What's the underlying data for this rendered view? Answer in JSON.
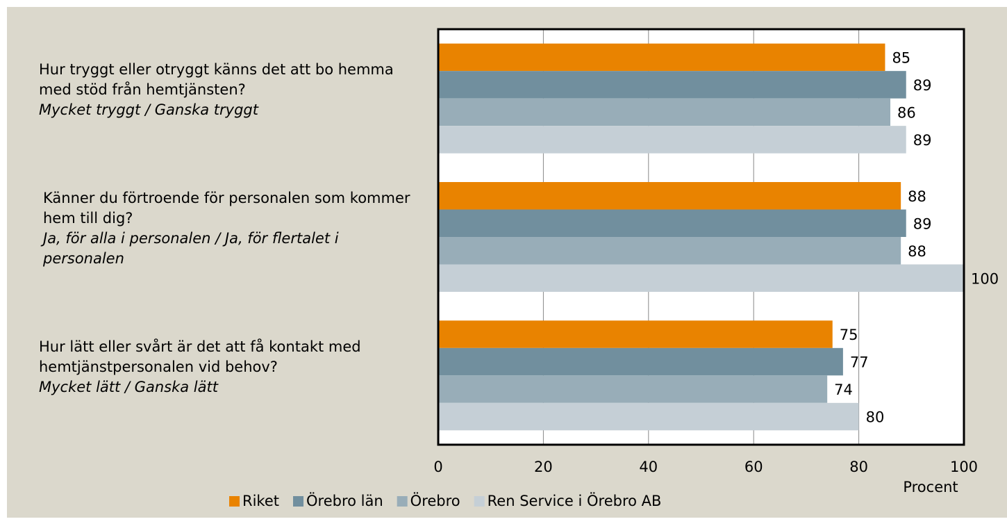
{
  "chart_data": {
    "type": "hbar",
    "categories": [
      "Hur tryggt eller otryggt känns det att bo hemma med stöd från hemtjänsten?",
      "Känner du förtroende för personalen som kommer hem till dig?",
      "Hur lätt eller svårt är det att få kontakt med hemtjänstpersonalen vid behov?"
    ],
    "category_notes": [
      "Mycket tryggt / Ganska tryggt",
      "Ja, för alla i personalen / Ja, för flertalet i personalen",
      "Mycket lätt / Ganska lätt"
    ],
    "series": [
      {
        "name": "Riket",
        "color": "#e98300",
        "values": [
          85,
          88,
          75
        ]
      },
      {
        "name": "Örebro län",
        "color": "#718f9e",
        "values": [
          89,
          89,
          77
        ]
      },
      {
        "name": "Örebro",
        "color": "#98adb8",
        "values": [
          86,
          88,
          74
        ]
      },
      {
        "name": "Ren Service i Örebro AB",
        "color": "#c5cfd6",
        "values": [
          89,
          100,
          80
        ]
      }
    ],
    "xlabel": "Procent",
    "xlim": [
      0,
      100
    ],
    "xticks": [
      0,
      20,
      40,
      60,
      80,
      100
    ],
    "grid": true,
    "legend": "bottom"
  }
}
